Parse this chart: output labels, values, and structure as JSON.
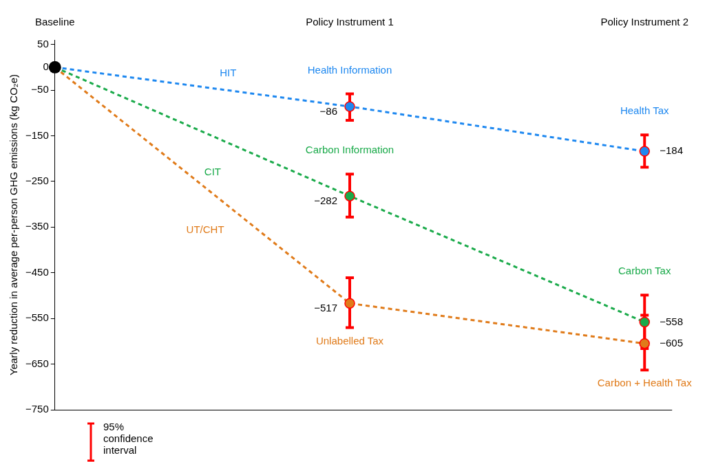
{
  "chart_data": {
    "type": "line",
    "ylabel": "Yearly reduction in average per-person GHG emissions (kg CO₂e)",
    "categories": [
      "Baseline",
      "Policy Instrument 1",
      "Policy Instrument 2"
    ],
    "ylim": [
      -750,
      60
    ],
    "yticks": [
      50,
      0,
      {
        "value": -50,
        "label": "−50"
      },
      {
        "value": -150,
        "label": "−150"
      },
      {
        "value": -250,
        "label": "−250"
      },
      {
        "value": -350,
        "label": "−350"
      },
      {
        "value": -450,
        "label": "−450"
      },
      {
        "value": -550,
        "label": "−550"
      },
      {
        "value": -650,
        "label": "−650"
      },
      {
        "value": -750,
        "label": "−750"
      }
    ],
    "grid": false,
    "legend": false,
    "marker": "circle",
    "line_style": "dashed",
    "series": [
      {
        "name": "HIT",
        "color": "#1e88f0",
        "values": [
          0,
          -86,
          -184
        ],
        "errors": [
          null,
          [
            -116,
            -58
          ],
          [
            -219,
            -148
          ]
        ],
        "value_labels": [
          null,
          "−86",
          "−184"
        ]
      },
      {
        "name": "CIT",
        "color": "#1aaa4a",
        "values": [
          0,
          -282,
          -558
        ],
        "errors": [
          null,
          [
            -328,
            -234
          ],
          [
            -616,
            -499
          ]
        ],
        "value_labels": [
          null,
          "−282",
          "−558"
        ]
      },
      {
        "name": "UT/CHT",
        "color": "#e07b1a",
        "values": [
          0,
          -517,
          -605
        ],
        "errors": [
          null,
          [
            -570,
            -461
          ],
          [
            -663,
            -543
          ]
        ],
        "value_labels": [
          null,
          "−517",
          "−605"
        ]
      },
      {
        "type": "scatter",
        "color": "#000000",
        "values": [
          0,
          null,
          null
        ]
      }
    ],
    "annotations": [
      "Health Information",
      "Carbon Information",
      "Unlabelled Tax",
      "Health Tax",
      "Carbon Tax",
      "Carbon + Health Tax",
      "95% confidence interval"
    ]
  }
}
